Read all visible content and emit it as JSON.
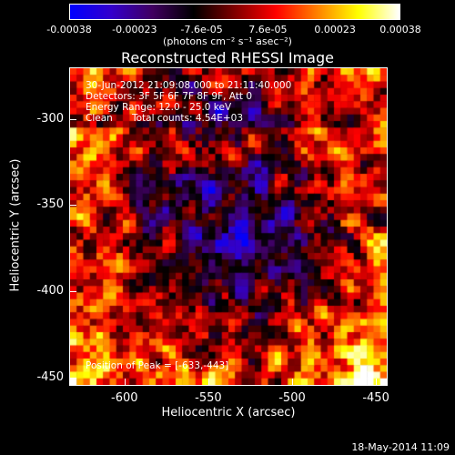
{
  "chart_data": {
    "type": "heatmap",
    "title": "Reconstructed RHESSI Image",
    "xlabel": "Heliocentric X (arcsec)",
    "ylabel": "Heliocentric Y (arcsec)",
    "xlim": [
      -633,
      -443
    ],
    "ylim": [
      -455,
      -270
    ],
    "xticks": [
      "-600",
      "-550",
      "-500",
      "-450"
    ],
    "xtick_values": [
      -600,
      -550,
      -500,
      -450
    ],
    "yticks": [
      "-300",
      "-350",
      "-400",
      "-450"
    ],
    "ytick_values": [
      -300,
      -350,
      -400,
      -450
    ],
    "colorbar": {
      "range": [
        -0.00038,
        0.00038
      ],
      "tick_labels": [
        "-0.00038",
        "-0.00023",
        "-7.6e-05",
        "7.6e-05",
        "0.00023",
        "0.00038"
      ],
      "tick_values": [
        -0.00038,
        -0.00023,
        -7.6e-05,
        7.6e-05,
        0.00023,
        0.00038
      ],
      "unit": "(photons cm⁻² s⁻¹ asec⁻²)",
      "colors": [
        "#0000ff",
        "#3300cc",
        "#400060",
        "#000000",
        "#800000",
        "#ff0000",
        "#ff8000",
        "#ffff00",
        "#ffffff"
      ]
    },
    "annotations": {
      "time_range": "30-Jun-2012 21:09:08.000 to 21:11:40.000",
      "detectors": "Detectors: 3F 5F 6F 7F 8F 9F, Att 0",
      "energy": "Energy Range: 12.0 - 25.0 keV",
      "algorithm": "Clean",
      "counts": "Total counts: 4.54E+03",
      "peak": "Position of Peak = [-633,-443]"
    },
    "peak_position": [
      -633,
      -443
    ]
  },
  "timestamp": "18-May-2014 11:09"
}
